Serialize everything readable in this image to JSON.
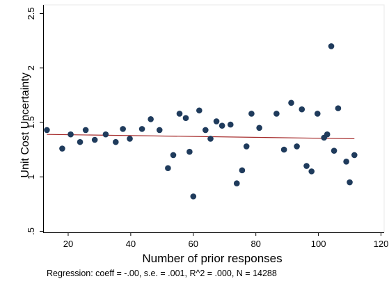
{
  "chart_data": {
    "type": "scatter",
    "title": "",
    "xlabel": "Number of prior responses",
    "ylabel": "Unit Cost Uncertainty",
    "xlim": [
      12,
      121
    ],
    "ylim": [
      0.49,
      2.58
    ],
    "x_ticks": [
      20,
      40,
      60,
      80,
      100,
      120
    ],
    "x_tick_labels": [
      "20",
      "40",
      "60",
      "80",
      "100",
      "120"
    ],
    "y_ticks": [
      0.5,
      1,
      1.5,
      2,
      2.5
    ],
    "y_tick_labels": [
      ".5",
      "1",
      "1.5",
      "2",
      "2.5"
    ],
    "grid": false,
    "colors": {
      "points": "#1f3b5c",
      "fit_line": "#a52a2a",
      "axis": "#000000"
    },
    "series": [
      {
        "points": [
          [
            13.2,
            1.43
          ],
          [
            18.1,
            1.26
          ],
          [
            20.8,
            1.39
          ],
          [
            23.8,
            1.32
          ],
          [
            25.6,
            1.43
          ],
          [
            28.5,
            1.34
          ],
          [
            32.0,
            1.39
          ],
          [
            35.2,
            1.32
          ],
          [
            37.5,
            1.44
          ],
          [
            39.7,
            1.35
          ],
          [
            43.6,
            1.44
          ],
          [
            46.4,
            1.53
          ],
          [
            49.2,
            1.43
          ],
          [
            51.9,
            1.08
          ],
          [
            53.6,
            1.2
          ],
          [
            55.6,
            1.58
          ],
          [
            57.6,
            1.54
          ],
          [
            58.8,
            1.23
          ],
          [
            60.0,
            0.82
          ],
          [
            61.9,
            1.61
          ],
          [
            63.9,
            1.43
          ],
          [
            65.5,
            1.35
          ],
          [
            67.4,
            1.51
          ],
          [
            69.2,
            1.47
          ],
          [
            71.9,
            1.48
          ],
          [
            73.9,
            0.94
          ],
          [
            75.6,
            1.06
          ],
          [
            77.0,
            1.28
          ],
          [
            78.6,
            1.58
          ],
          [
            81.1,
            1.45
          ],
          [
            86.6,
            1.58
          ],
          [
            89.0,
            1.25
          ],
          [
            91.3,
            1.68
          ],
          [
            93.1,
            1.28
          ],
          [
            94.7,
            1.62
          ],
          [
            96.2,
            1.1
          ],
          [
            97.8,
            1.05
          ],
          [
            99.7,
            1.58
          ],
          [
            101.8,
            1.36
          ],
          [
            102.8,
            1.39
          ],
          [
            104.1,
            2.2
          ],
          [
            105.0,
            1.24
          ],
          [
            106.3,
            1.63
          ],
          [
            108.9,
            1.14
          ],
          [
            110.0,
            0.95
          ],
          [
            111.5,
            1.2
          ]
        ]
      }
    ],
    "fit_line": {
      "x": [
        13.2,
        111.5
      ],
      "y": [
        1.39,
        1.35
      ]
    },
    "note": "Regression: coeff = -.00, s.e. = .001, R^2 = .000, N = 14288"
  }
}
